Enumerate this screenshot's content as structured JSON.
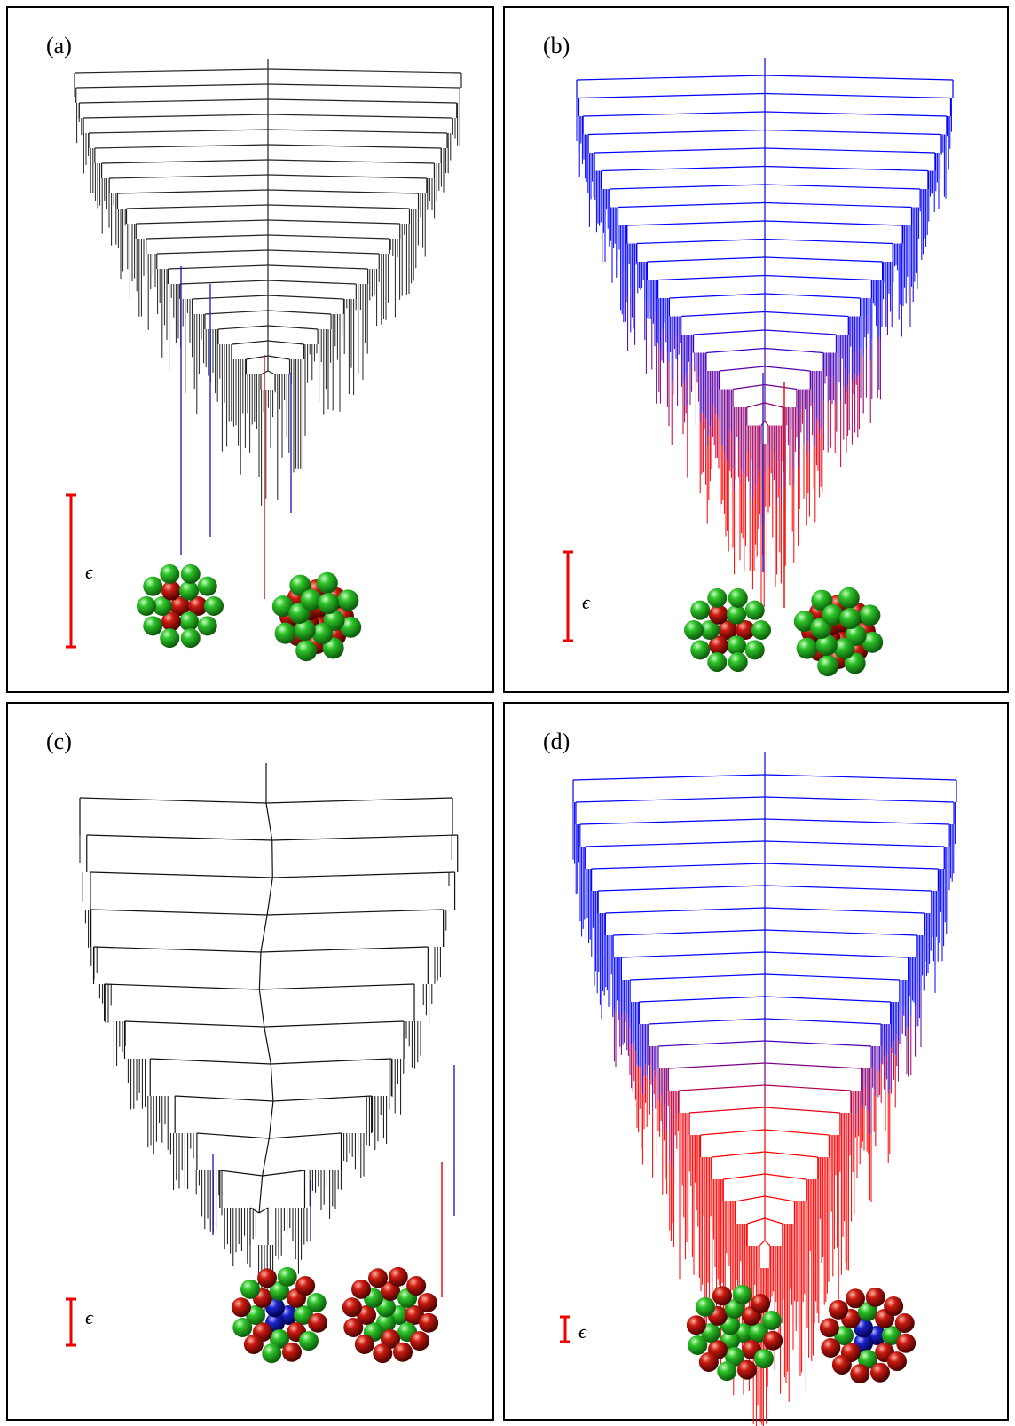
{
  "panels": [
    {
      "label": "(a)",
      "scale_label": "ϵ"
    },
    {
      "label": "(b)",
      "scale_label": "ϵ"
    },
    {
      "label": "(c)",
      "scale_label": "ϵ"
    },
    {
      "label": "(d)",
      "scale_label": "ϵ"
    }
  ]
}
